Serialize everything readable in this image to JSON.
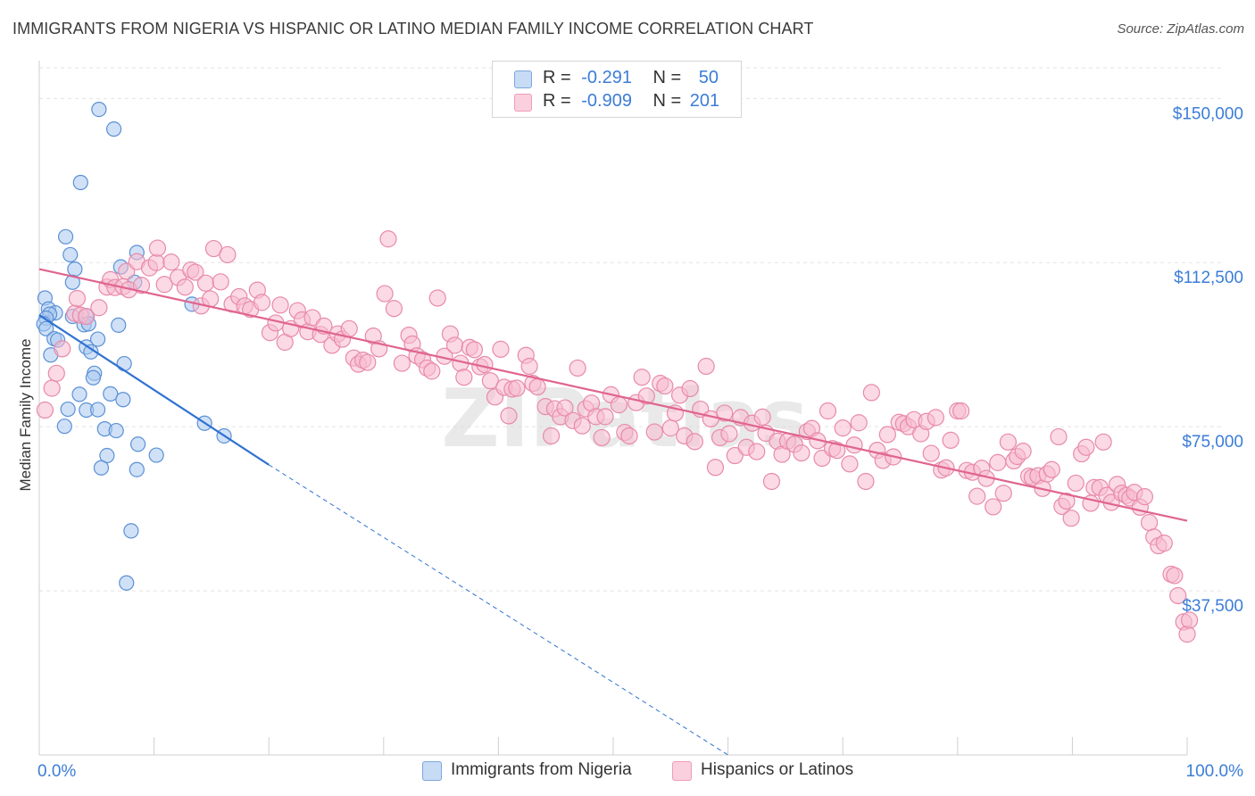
{
  "title": "IMMIGRANTS FROM NIGERIA VS HISPANIC OR LATINO MEDIAN FAMILY INCOME CORRELATION CHART",
  "source": "Source: ZipAtlas.com",
  "watermark": "ZIPatlas",
  "legend": {
    "rows": [
      {
        "r_label": "R =",
        "r_value": "-0.291",
        "n_label": "N =",
        "n_value": "50"
      },
      {
        "r_label": "R =",
        "r_value": "-0.909",
        "n_label": "N =",
        "n_value": "201"
      }
    ]
  },
  "colors": {
    "nigeria_fill": "#a9c8f0",
    "nigeria_stroke": "#5a90d6",
    "nigeria_line": "#2f72d1",
    "hispanic_fill": "#f7bccf",
    "hispanic_stroke": "#e88aa8",
    "hispanic_line": "#e0648f",
    "axis_label_color": "#3b7dd8",
    "grid": "#e3e3e3"
  },
  "chart_data": {
    "type": "scatter",
    "title": "IMMIGRANTS FROM NIGERIA VS HISPANIC OR LATINO MEDIAN FAMILY INCOME CORRELATION CHART",
    "xlabel": "",
    "ylabel": "Median Family Income",
    "xlim": [
      0,
      100
    ],
    "ylim": [
      0,
      157000
    ],
    "x_tick_labels": [
      "0.0%",
      "100.0%"
    ],
    "y_ticks": [
      37500,
      75000,
      112500,
      150000
    ],
    "y_tick_labels": [
      "$37,500",
      "$75,000",
      "$112,500",
      "$150,000"
    ],
    "grid": true,
    "legend_placement": "top-center",
    "series": [
      {
        "name": "Immigrants from Nigeria",
        "r": -0.291,
        "n": 50,
        "trend": {
          "x0": 0,
          "y0": 100500,
          "x1": 20,
          "y1": 66300,
          "dash_to_x": 60,
          "dash_to_y": 0
        },
        "points": [
          [
            5.2,
            147500
          ],
          [
            6.5,
            143000
          ],
          [
            3.6,
            130800
          ],
          [
            2.3,
            118400
          ],
          [
            2.7,
            114300
          ],
          [
            3.1,
            111000
          ],
          [
            7.1,
            111500
          ],
          [
            8.5,
            114800
          ],
          [
            8.3,
            108000
          ],
          [
            2.9,
            108000
          ],
          [
            0.5,
            104400
          ],
          [
            0.8,
            101900
          ],
          [
            1.4,
            101000
          ],
          [
            0.9,
            100700
          ],
          [
            0.6,
            99800
          ],
          [
            2.9,
            100200
          ],
          [
            4.1,
            100300
          ],
          [
            0.4,
            98500
          ],
          [
            0.6,
            97400
          ],
          [
            3.9,
            98300
          ],
          [
            4.3,
            98500
          ],
          [
            6.9,
            98200
          ],
          [
            1.3,
            95100
          ],
          [
            1.6,
            94800
          ],
          [
            5.1,
            95000
          ],
          [
            4.1,
            93200
          ],
          [
            4.5,
            92100
          ],
          [
            1.0,
            91400
          ],
          [
            7.4,
            89400
          ],
          [
            4.8,
            87200
          ],
          [
            4.7,
            86200
          ],
          [
            13.3,
            103000
          ],
          [
            3.5,
            82400
          ],
          [
            6.2,
            82500
          ],
          [
            7.3,
            81200
          ],
          [
            2.5,
            79000
          ],
          [
            4.1,
            78800
          ],
          [
            5.1,
            78900
          ],
          [
            2.2,
            75100
          ],
          [
            5.7,
            74500
          ],
          [
            6.7,
            74100
          ],
          [
            14.4,
            75800
          ],
          [
            16.1,
            72900
          ],
          [
            8.6,
            71000
          ],
          [
            10.2,
            68500
          ],
          [
            5.9,
            68400
          ],
          [
            5.4,
            65600
          ],
          [
            8.5,
            65200
          ],
          [
            8.0,
            51200
          ],
          [
            7.6,
            39300
          ]
        ]
      },
      {
        "name": "Hispanics or Latinos",
        "r": -0.909,
        "n": 201,
        "trend": {
          "x0": 0,
          "y0": 111000,
          "x1": 100,
          "y1": 53500
        },
        "points": [
          [
            0.5,
            78800
          ],
          [
            1.1,
            83800
          ],
          [
            1.5,
            87200
          ],
          [
            2.0,
            92800
          ],
          [
            3.1,
            100900
          ],
          [
            3.3,
            104300
          ],
          [
            3.6,
            100500
          ],
          [
            4.1,
            100200
          ],
          [
            5.2,
            102200
          ],
          [
            5.9,
            106900
          ],
          [
            6.2,
            108600
          ],
          [
            6.6,
            106800
          ],
          [
            7.3,
            107000
          ],
          [
            7.6,
            110500
          ],
          [
            7.8,
            106300
          ],
          [
            8.5,
            112700
          ],
          [
            8.9,
            107300
          ],
          [
            9.6,
            111300
          ],
          [
            10.2,
            112500
          ],
          [
            10.3,
            115800
          ],
          [
            10.9,
            107500
          ],
          [
            11.5,
            112600
          ],
          [
            12.1,
            109100
          ],
          [
            12.7,
            106900
          ],
          [
            13.2,
            110800
          ],
          [
            13.6,
            110300
          ],
          [
            14.1,
            102600
          ],
          [
            14.5,
            107800
          ],
          [
            14.9,
            104200
          ],
          [
            15.2,
            115700
          ],
          [
            15.8,
            108100
          ],
          [
            16.4,
            114300
          ],
          [
            16.8,
            103000
          ],
          [
            17.4,
            104700
          ],
          [
            17.9,
            102600
          ],
          [
            18.4,
            101800
          ],
          [
            19.0,
            106200
          ],
          [
            19.4,
            103400
          ],
          [
            20.1,
            96500
          ],
          [
            20.6,
            98700
          ],
          [
            21.0,
            102800
          ],
          [
            21.4,
            94300
          ],
          [
            21.9,
            97400
          ],
          [
            22.5,
            101500
          ],
          [
            22.9,
            99400
          ],
          [
            23.4,
            96700
          ],
          [
            23.8,
            99900
          ],
          [
            24.5,
            96100
          ],
          [
            24.8,
            98000
          ],
          [
            25.5,
            93600
          ],
          [
            26.0,
            96200
          ],
          [
            26.4,
            95000
          ],
          [
            27.0,
            97400
          ],
          [
            27.4,
            90700
          ],
          [
            27.8,
            89300
          ],
          [
            28.2,
            90200
          ],
          [
            28.6,
            89700
          ],
          [
            29.1,
            95700
          ],
          [
            29.6,
            92800
          ],
          [
            30.1,
            105400
          ],
          [
            30.4,
            117900
          ],
          [
            30.9,
            102000
          ],
          [
            31.6,
            89500
          ],
          [
            32.2,
            95900
          ],
          [
            32.5,
            93900
          ],
          [
            32.9,
            91200
          ],
          [
            33.4,
            90300
          ],
          [
            33.8,
            88400
          ],
          [
            34.2,
            87700
          ],
          [
            34.7,
            104400
          ],
          [
            35.3,
            91100
          ],
          [
            35.8,
            96200
          ],
          [
            36.2,
            93600
          ],
          [
            36.7,
            89500
          ],
          [
            37.0,
            86300
          ],
          [
            37.5,
            93100
          ],
          [
            37.9,
            92600
          ],
          [
            38.4,
            88700
          ],
          [
            38.8,
            89200
          ],
          [
            39.3,
            85500
          ],
          [
            39.7,
            81800
          ],
          [
            40.2,
            92700
          ],
          [
            40.5,
            84000
          ],
          [
            40.9,
            77500
          ],
          [
            41.2,
            83600
          ],
          [
            41.6,
            83800
          ],
          [
            42.4,
            91300
          ],
          [
            42.7,
            88800
          ],
          [
            43.0,
            84900
          ],
          [
            43.4,
            84100
          ],
          [
            44.1,
            79600
          ],
          [
            44.6,
            72900
          ],
          [
            44.9,
            79100
          ],
          [
            45.4,
            77300
          ],
          [
            45.8,
            79300
          ],
          [
            46.5,
            76400
          ],
          [
            46.9,
            88400
          ],
          [
            47.3,
            75200
          ],
          [
            47.6,
            79100
          ],
          [
            48.1,
            80400
          ],
          [
            48.5,
            77300
          ],
          [
            49.0,
            72500
          ],
          [
            49.3,
            77300
          ],
          [
            49.8,
            82300
          ],
          [
            50.5,
            80000
          ],
          [
            51.0,
            73700
          ],
          [
            51.4,
            72900
          ],
          [
            52.0,
            80500
          ],
          [
            52.5,
            86300
          ],
          [
            52.9,
            82000
          ],
          [
            53.6,
            73800
          ],
          [
            54.1,
            84900
          ],
          [
            54.5,
            84300
          ],
          [
            55.0,
            74700
          ],
          [
            55.4,
            78100
          ],
          [
            55.8,
            82200
          ],
          [
            56.2,
            72900
          ],
          [
            56.7,
            83700
          ],
          [
            57.1,
            71600
          ],
          [
            57.6,
            79000
          ],
          [
            58.1,
            88800
          ],
          [
            58.5,
            76800
          ],
          [
            58.9,
            65700
          ],
          [
            59.3,
            72500
          ],
          [
            59.7,
            78100
          ],
          [
            60.1,
            73400
          ],
          [
            60.6,
            68400
          ],
          [
            61.1,
            77100
          ],
          [
            61.6,
            70300
          ],
          [
            62.1,
            75800
          ],
          [
            62.5,
            69300
          ],
          [
            63.0,
            77200
          ],
          [
            63.3,
            73500
          ],
          [
            63.8,
            62500
          ],
          [
            64.3,
            71700
          ],
          [
            64.7,
            68700
          ],
          [
            65.2,
            71700
          ],
          [
            65.8,
            71000
          ],
          [
            66.4,
            69000
          ],
          [
            66.9,
            73900
          ],
          [
            67.3,
            74600
          ],
          [
            67.8,
            71800
          ],
          [
            68.2,
            67800
          ],
          [
            68.7,
            78600
          ],
          [
            69.1,
            70000
          ],
          [
            69.5,
            69600
          ],
          [
            70.0,
            74700
          ],
          [
            70.6,
            66500
          ],
          [
            71.0,
            70800
          ],
          [
            71.4,
            75900
          ],
          [
            72.0,
            62500
          ],
          [
            72.5,
            82800
          ],
          [
            73.0,
            69600
          ],
          [
            73.5,
            67300
          ],
          [
            73.9,
            73200
          ],
          [
            74.4,
            68100
          ],
          [
            74.9,
            76000
          ],
          [
            75.3,
            75700
          ],
          [
            75.7,
            75000
          ],
          [
            76.2,
            76600
          ],
          [
            76.8,
            73400
          ],
          [
            77.3,
            76200
          ],
          [
            77.7,
            68900
          ],
          [
            78.1,
            77100
          ],
          [
            78.6,
            65100
          ],
          [
            79.0,
            65600
          ],
          [
            79.4,
            71900
          ],
          [
            80.0,
            78600
          ],
          [
            80.3,
            78600
          ],
          [
            80.8,
            65000
          ],
          [
            81.3,
            64600
          ],
          [
            81.7,
            59100
          ],
          [
            82.1,
            65500
          ],
          [
            82.5,
            63200
          ],
          [
            83.1,
            56700
          ],
          [
            83.5,
            66800
          ],
          [
            84.0,
            59800
          ],
          [
            84.4,
            71500
          ],
          [
            84.9,
            67200
          ],
          [
            85.2,
            68200
          ],
          [
            85.7,
            69400
          ],
          [
            86.2,
            63700
          ],
          [
            86.5,
            63400
          ],
          [
            87.0,
            63800
          ],
          [
            87.4,
            60900
          ],
          [
            87.8,
            64200
          ],
          [
            88.2,
            65200
          ],
          [
            88.8,
            72700
          ],
          [
            89.1,
            56800
          ],
          [
            89.5,
            58000
          ],
          [
            89.9,
            54100
          ],
          [
            90.3,
            62100
          ],
          [
            90.8,
            68800
          ],
          [
            91.2,
            70300
          ],
          [
            91.6,
            57500
          ],
          [
            91.9,
            61100
          ],
          [
            92.4,
            61100
          ],
          [
            92.7,
            71500
          ],
          [
            93.0,
            59300
          ],
          [
            93.4,
            57700
          ],
          [
            93.9,
            61800
          ],
          [
            94.3,
            59800
          ],
          [
            94.7,
            59300
          ],
          [
            95.0,
            58700
          ],
          [
            95.4,
            60000
          ],
          [
            95.9,
            56600
          ],
          [
            96.3,
            59000
          ],
          [
            96.7,
            53100
          ],
          [
            97.1,
            49800
          ],
          [
            97.5,
            47800
          ],
          [
            98.0,
            48400
          ],
          [
            98.6,
            41300
          ],
          [
            98.9,
            41000
          ],
          [
            99.2,
            36400
          ],
          [
            99.7,
            30400
          ],
          [
            100.0,
            27600
          ],
          [
            100.2,
            30800
          ]
        ]
      }
    ]
  }
}
